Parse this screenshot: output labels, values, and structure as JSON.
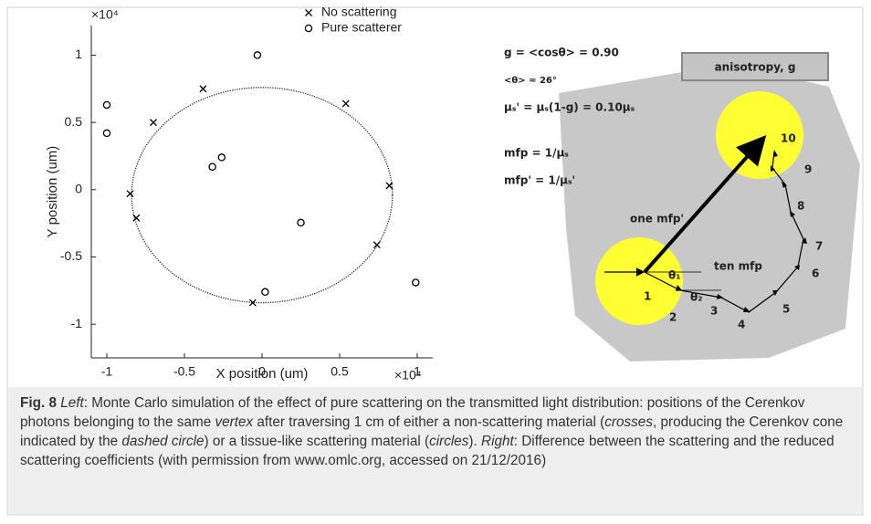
{
  "chart_data": {
    "type": "scatter",
    "xlabel": "X position (um)",
    "ylabel": "Y position (um)",
    "x_multiplier": "×10⁴",
    "y_multiplier": "×10⁴",
    "xlim": [
      -1.1,
      1.1
    ],
    "xticks": [
      -1,
      -0.5,
      0,
      0.5,
      1
    ],
    "ylim": [
      -1.25,
      1.22
    ],
    "yticks": [
      -1,
      -0.5,
      0,
      0.5,
      1
    ],
    "legend": "upper right",
    "series": [
      {
        "name": "No scattering",
        "marker": "x",
        "color": "#000000",
        "x": [
          -0.38,
          0.54,
          -0.7,
          0.82,
          -0.85,
          -0.81,
          0.74,
          -0.06
        ],
        "values": [
          0.75,
          0.64,
          0.5,
          0.03,
          -0.03,
          -0.21,
          -0.41,
          -0.84
        ]
      },
      {
        "name": "Pure scatterer",
        "marker": "o",
        "color": "#000000",
        "x": [
          -0.03,
          -1.0,
          -1.0,
          -0.32,
          -0.26,
          0.25,
          0.02,
          0.99
        ],
        "values": [
          1.0,
          0.63,
          0.42,
          0.17,
          0.24,
          -0.245,
          -0.76,
          -0.69
        ]
      }
    ],
    "cone_circle": {
      "cx": 0,
      "cy": -0.04,
      "rx": 0.84,
      "ry": 0.8
    }
  },
  "diagram": {
    "formulas": [
      "g = <cosθ> = 0.90",
      "<θ> ≈ 26°",
      "μₛ' = μₛ(1-g) = 0.10μₛ",
      "mfp = 1/μₛ",
      "mfp' = 1/μₛ'"
    ],
    "box_label": "anisotropy, g",
    "one_mfp": "one mfp'",
    "ten_mfp": "ten mfp",
    "angles": [
      "θ₁",
      "θ₂"
    ],
    "steps": [
      "1",
      "2",
      "3",
      "4",
      "5",
      "6",
      "7",
      "8",
      "9",
      "10"
    ]
  },
  "caption": {
    "parts": [
      "Fig. 8",
      "Left",
      ": Monte Carlo simulation of the effect of pure scattering on the transmitted light distribution: positions of the Cerenkov photons belonging to the same ",
      "vertex",
      " after traversing 1 cm of either a non-scattering material (",
      "crosses",
      ", producing the Cerenkov cone indicated by the ",
      "dashed circle",
      ") or a tissue-like scattering material (",
      "circles",
      "). ",
      "Right",
      ": Difference between the scattering and the reduced scattering coefficients (with permission from www.omlc.org, accessed on 21/12/2016)"
    ]
  }
}
